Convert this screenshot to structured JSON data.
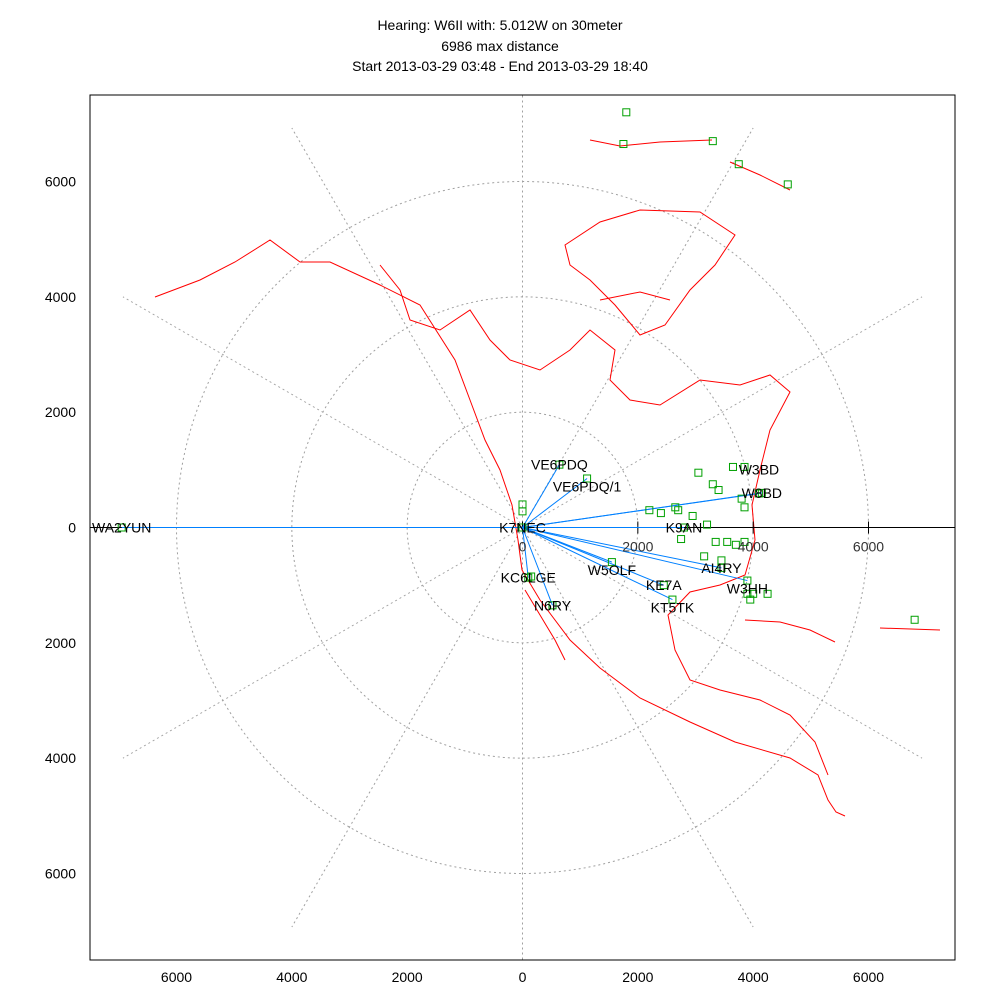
{
  "chart_data": {
    "type": "scatter",
    "title_lines": [
      "Hearing: W6II with: 5.012W on 30meter",
      "6986 max distance",
      "Start 2013-03-29 03:48 - End 2013-03-29 18:40"
    ],
    "xlim": [
      -7500,
      7500
    ],
    "ylim": [
      -7500,
      7500
    ],
    "x_tick_labels": [
      "6000",
      "4000",
      "2000",
      "0",
      "2000",
      "4000",
      "6000"
    ],
    "x_ticks": [
      -6000,
      -4000,
      -2000,
      0,
      2000,
      4000,
      6000
    ],
    "y_tick_labels": [
      "6000",
      "4000",
      "2000",
      "0",
      "2000",
      "4000",
      "6000"
    ],
    "y_ticks": [
      6000,
      4000,
      2000,
      0,
      -2000,
      -4000,
      -6000
    ],
    "inner_tick_labels": [
      "0",
      "2000",
      "4000",
      "6000"
    ],
    "inner_ticks": [
      0,
      2000,
      4000,
      6000
    ],
    "polar_grid": {
      "radii": [
        2000,
        4000,
        6000
      ],
      "spoke_step_deg": 30,
      "style": "dotted"
    },
    "colors": {
      "map": "#ff0000",
      "path": "#0080ff",
      "spot": "#00a000",
      "axis": "#000000",
      "grid": "#a0a0a0"
    },
    "stations": [
      {
        "call": "WA2YUN",
        "x": -6950,
        "y": 0
      },
      {
        "call": "VE6PDQ",
        "x": 640,
        "y": 1090
      },
      {
        "call": "VE6PDQ/1",
        "x": 1120,
        "y": 850
      },
      {
        "call": "W8BD",
        "x": 4150,
        "y": 600
      },
      {
        "call": "W3BD",
        "x": 4100,
        "y": 590
      },
      {
        "call": "K9AN",
        "x": 2800,
        "y": 0
      },
      {
        "call": "W5OLF",
        "x": 1550,
        "y": -600
      },
      {
        "call": "AI4RY",
        "x": 3450,
        "y": -700
      },
      {
        "call": "W3HH",
        "x": 3900,
        "y": -920
      },
      {
        "call": "KE7A",
        "x": 2450,
        "y": -1000
      },
      {
        "call": "KT5TK",
        "x": 2600,
        "y": -1250
      },
      {
        "call": "KC6LGE",
        "x": 100,
        "y": -870
      },
      {
        "call": "N6RY",
        "x": 520,
        "y": -1350
      },
      {
        "call": "K7NEC",
        "x": 0,
        "y": 0
      }
    ],
    "other_spots": [
      [
        1800,
        7200
      ],
      [
        1750,
        6650
      ],
      [
        3300,
        6700
      ],
      [
        3750,
        6300
      ],
      [
        4600,
        5950
      ],
      [
        3050,
        950
      ],
      [
        3650,
        1050
      ],
      [
        3850,
        1050
      ],
      [
        3300,
        750
      ],
      [
        3400,
        650
      ],
      [
        3800,
        500
      ],
      [
        3850,
        350
      ],
      [
        2200,
        300
      ],
      [
        2400,
        250
      ],
      [
        2650,
        350
      ],
      [
        2700,
        300
      ],
      [
        2950,
        200
      ],
      [
        3200,
        50
      ],
      [
        2750,
        -200
      ],
      [
        3350,
        -250
      ],
      [
        3550,
        -250
      ],
      [
        3700,
        -300
      ],
      [
        3150,
        -500
      ],
      [
        3450,
        -570
      ],
      [
        3900,
        -1150
      ],
      [
        4000,
        -1150
      ],
      [
        3950,
        -1250
      ],
      [
        4250,
        -1150
      ],
      [
        6800,
        -1600
      ],
      [
        3850,
        -250
      ],
      [
        0,
        400
      ],
      [
        0,
        280
      ],
      [
        150,
        -850
      ]
    ]
  }
}
